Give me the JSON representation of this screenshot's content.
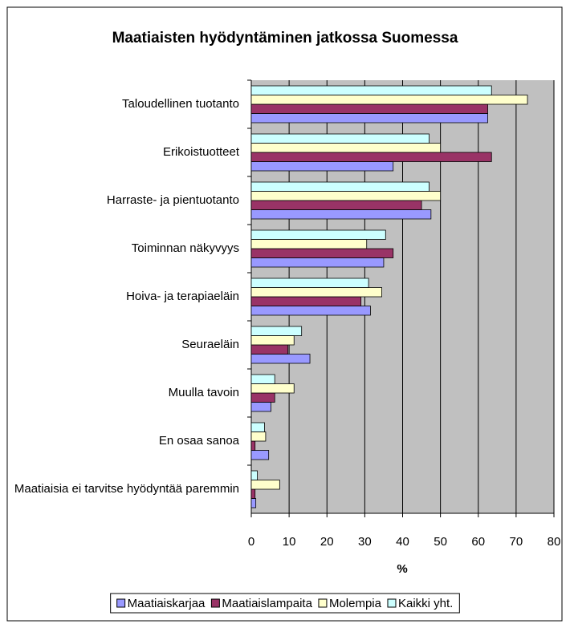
{
  "chart_data": {
    "type": "barh",
    "title": "Maatiaisten hyödyntäminen jatkossa Suomessa",
    "categories": [
      "Taloudellinen tuotanto",
      "Erikoistuotteet",
      "Harraste- ja pientuotanto",
      "Toiminnan näkyvyys",
      "Hoiva- ja terapiaeläin",
      "Seuraeläin",
      "Muulla tavoin",
      "En osaa sanoa",
      "Maatiaisia ei tarvitse hyödyntää paremmin"
    ],
    "series": [
      {
        "name": "Maatiaiskarjaa",
        "color": "#9999ff",
        "values": [
          62.5,
          37.5,
          47.5,
          35,
          31.5,
          15.5,
          5.2,
          4.6,
          1.2
        ]
      },
      {
        "name": "Maatiaislampaita",
        "color": "#993366",
        "values": [
          62.5,
          63.5,
          45,
          37.5,
          29,
          9.7,
          6.2,
          1,
          1
        ]
      },
      {
        "name": "Molempia",
        "color": "#ffffcc",
        "values": [
          73,
          50,
          50,
          30.5,
          34.5,
          11.3,
          11.3,
          3.8,
          7.5
        ]
      },
      {
        "name": "Kaikki yht.",
        "color": "#ccffff",
        "values": [
          63.5,
          47,
          47,
          35.5,
          31,
          13.3,
          6.2,
          3.5,
          1.6
        ]
      }
    ],
    "xlabel": "%",
    "xlim": [
      0,
      80
    ],
    "xticks": [
      0,
      10,
      20,
      30,
      40,
      50,
      60,
      70,
      80
    ],
    "grid": true,
    "legend": "bottom"
  }
}
